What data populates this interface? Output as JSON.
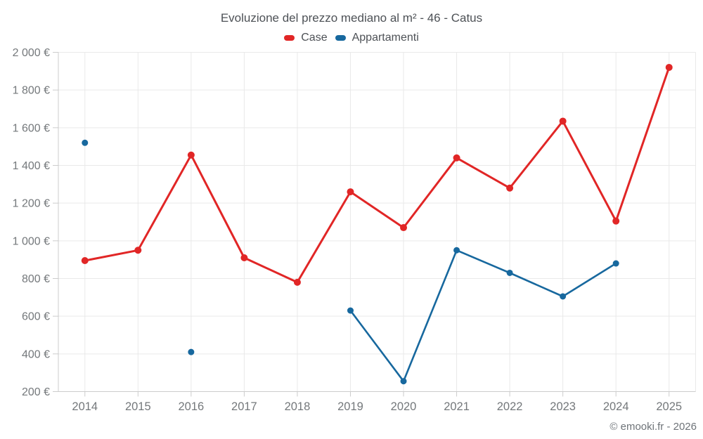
{
  "header": {
    "title": "Evoluzione del prezzo mediano al m² - 46 - Catus"
  },
  "footer": {
    "credit": "© emooki.fr - 2026"
  },
  "chart_data": {
    "type": "line",
    "title": "Evoluzione del prezzo mediano al m² - 46 - Catus",
    "categories": [
      "2014",
      "2015",
      "2016",
      "2017",
      "2018",
      "2019",
      "2020",
      "2021",
      "2022",
      "2023",
      "2024",
      "2025"
    ],
    "series": [
      {
        "name": "Case",
        "color": "#e12626",
        "values": [
          895,
          950,
          1455,
          910,
          780,
          1260,
          1070,
          1440,
          1280,
          1635,
          1105,
          1920
        ]
      },
      {
        "name": "Appartamenti",
        "color": "#17689e",
        "values": [
          1520,
          null,
          410,
          null,
          null,
          630,
          255,
          950,
          830,
          705,
          880,
          null
        ]
      }
    ],
    "ylim": [
      200,
      2000
    ],
    "y_tick_step": 200,
    "y_tick_labels": [
      "200 €",
      "400 €",
      "600 €",
      "800 €",
      "1 000 €",
      "1 200 €",
      "1 400 €",
      "1 600 €",
      "1 800 €",
      "2 000 €"
    ],
    "grid": true,
    "legend_position": "top",
    "colors": {
      "grid": "#e9e9e9",
      "axis": "#cccccc",
      "tick_label": "#74787b",
      "title_text": "#4d5156",
      "credit_text": "#6e7378"
    }
  }
}
